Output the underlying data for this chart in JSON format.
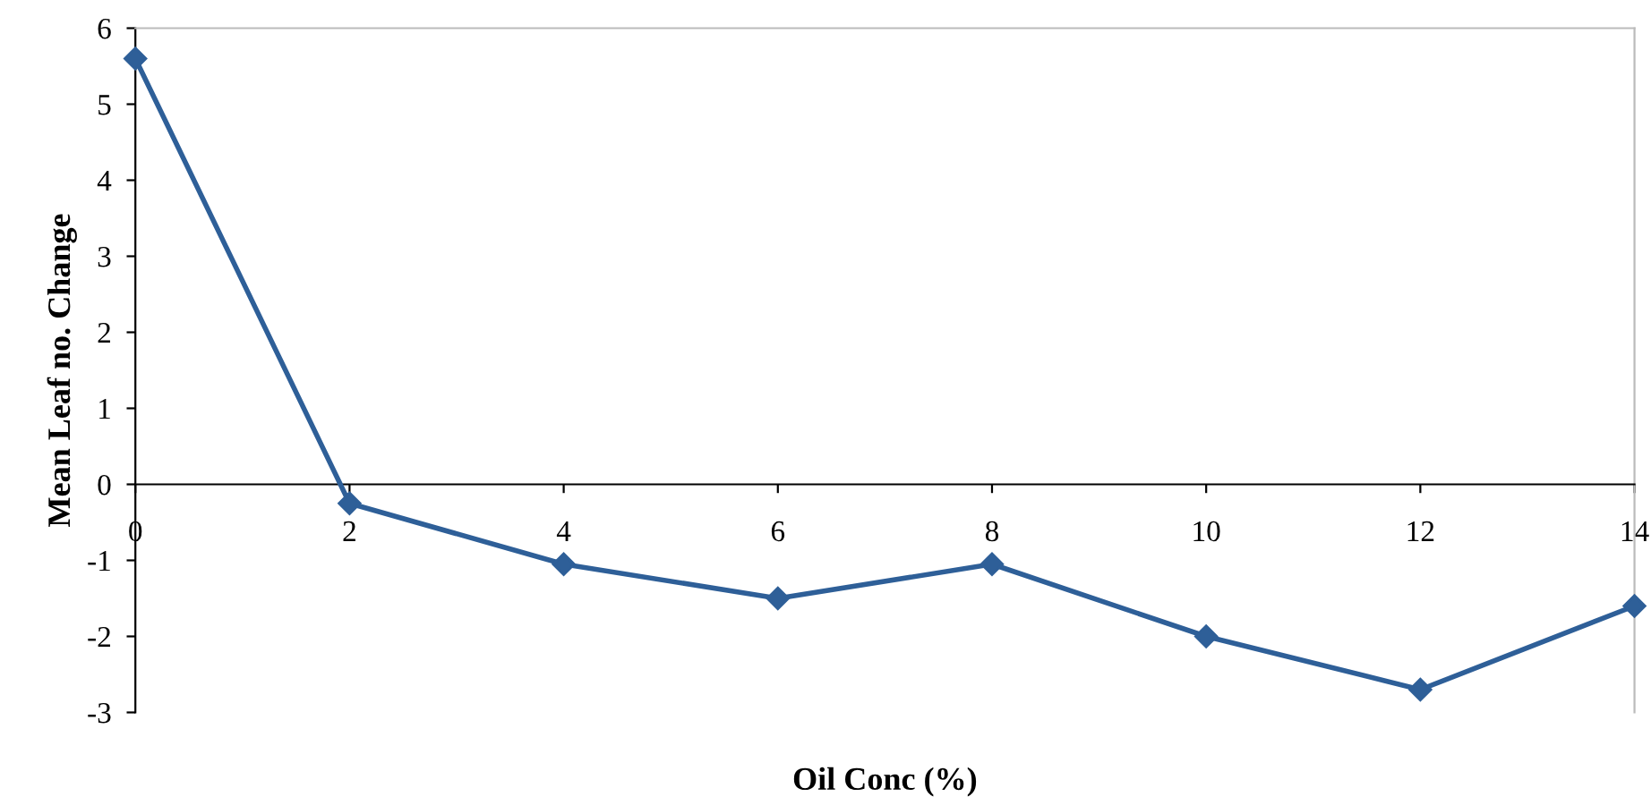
{
  "chart_data": {
    "type": "line",
    "xlabel": "Oil Conc (%)",
    "ylabel": "Mean Leaf no. Change",
    "x": [
      0,
      2,
      4,
      6,
      8,
      10,
      12,
      14
    ],
    "series": [
      {
        "color": "#2e5f98",
        "values": [
          5.6,
          -0.25,
          -1.05,
          -1.5,
          -1.05,
          -2.0,
          -2.7,
          -1.6
        ]
      }
    ],
    "xlim": [
      0,
      14
    ],
    "ylim": [
      -3,
      6
    ],
    "xticks": [
      0,
      2,
      4,
      6,
      8,
      10,
      12,
      14
    ],
    "yticks": [
      -3,
      -2,
      -1,
      0,
      1,
      2,
      3,
      4,
      5,
      6
    ],
    "marker": "diamond",
    "line_style": "solid",
    "grid": false,
    "legend": false
  }
}
